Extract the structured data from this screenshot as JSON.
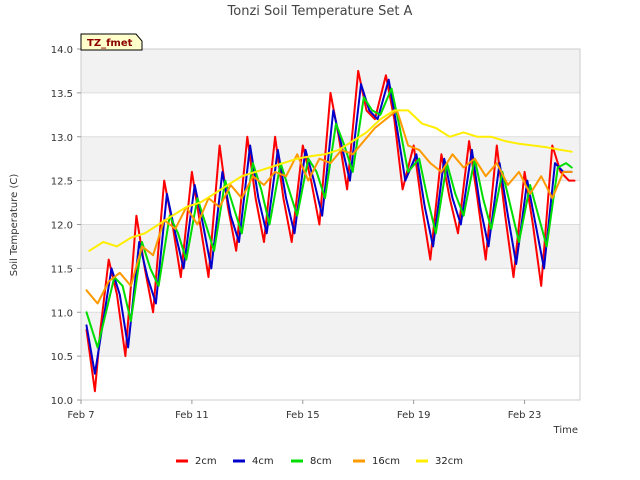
{
  "chart_data": {
    "type": "line",
    "title": "Tonzi Soil Temperature Set A",
    "xlabel": "Time",
    "ylabel": "Soil Temperature (C)",
    "badge": "TZ_fmet",
    "xlim": [
      0,
      18
    ],
    "ylim": [
      10.0,
      14.0
    ],
    "x_ticks": [
      {
        "label": "Feb 7",
        "value": 0
      },
      {
        "label": "Feb 11",
        "value": 4
      },
      {
        "label": "Feb 15",
        "value": 8
      },
      {
        "label": "Feb 19",
        "value": 12
      },
      {
        "label": "Feb 23",
        "value": 16
      }
    ],
    "y_ticks": [
      10.0,
      10.5,
      11.0,
      11.5,
      12.0,
      12.5,
      13.0,
      13.5,
      14.0
    ],
    "x_unit": "days since Feb 7",
    "series": [
      {
        "name": "2cm",
        "color": "#ff0000",
        "x": [
          0.2,
          0.5,
          0.7,
          1.0,
          1.3,
          1.6,
          2.0,
          2.3,
          2.6,
          3.0,
          3.3,
          3.6,
          4.0,
          4.3,
          4.6,
          5.0,
          5.3,
          5.6,
          6.0,
          6.3,
          6.6,
          7.0,
          7.3,
          7.6,
          8.0,
          8.3,
          8.6,
          9.0,
          9.3,
          9.6,
          10.0,
          10.3,
          10.6,
          11.0,
          11.3,
          11.6,
          12.0,
          12.3,
          12.6,
          13.0,
          13.3,
          13.6,
          14.0,
          14.3,
          14.6,
          15.0,
          15.3,
          15.6,
          16.0,
          16.3,
          16.6,
          17.0,
          17.3,
          17.6,
          17.8
        ],
        "y": [
          10.8,
          10.1,
          10.8,
          11.6,
          11.2,
          10.5,
          12.1,
          11.5,
          11.0,
          12.5,
          12.0,
          11.4,
          12.6,
          12.0,
          11.4,
          12.9,
          12.2,
          11.7,
          13.0,
          12.3,
          11.8,
          13.0,
          12.3,
          11.8,
          12.9,
          12.5,
          12.0,
          13.5,
          13.0,
          12.4,
          13.75,
          13.3,
          13.2,
          13.7,
          13.2,
          12.4,
          12.9,
          12.2,
          11.6,
          12.8,
          12.3,
          11.9,
          12.95,
          12.3,
          11.6,
          12.9,
          12.1,
          11.4,
          12.6,
          12.0,
          11.3,
          12.9,
          12.6,
          12.5,
          12.5
        ]
      },
      {
        "name": "4cm",
        "color": "#0000cc",
        "x": [
          0.2,
          0.5,
          0.8,
          1.1,
          1.4,
          1.7,
          2.1,
          2.4,
          2.7,
          3.1,
          3.4,
          3.7,
          4.1,
          4.4,
          4.7,
          5.1,
          5.4,
          5.7,
          6.1,
          6.4,
          6.7,
          7.1,
          7.4,
          7.7,
          8.1,
          8.4,
          8.7,
          9.1,
          9.4,
          9.7,
          10.1,
          10.4,
          10.7,
          11.1,
          11.4,
          11.7,
          12.1,
          12.4,
          12.7,
          13.1,
          13.4,
          13.7,
          14.1,
          14.4,
          14.7,
          15.1,
          15.4,
          15.7,
          16.1,
          16.4,
          16.7,
          17.1,
          17.4,
          17.7
        ],
        "y": [
          10.85,
          10.3,
          10.9,
          11.5,
          11.2,
          10.6,
          11.8,
          11.4,
          11.1,
          12.35,
          11.9,
          11.5,
          12.45,
          12.0,
          11.5,
          12.6,
          12.1,
          11.8,
          12.9,
          12.3,
          11.9,
          12.85,
          12.3,
          11.9,
          12.85,
          12.5,
          12.1,
          13.3,
          12.9,
          12.5,
          13.6,
          13.3,
          13.2,
          13.65,
          13.1,
          12.5,
          12.8,
          12.2,
          11.75,
          12.75,
          12.3,
          12.0,
          12.85,
          12.2,
          11.75,
          12.7,
          12.1,
          11.55,
          12.5,
          12.0,
          11.5,
          12.7,
          12.6,
          12.6
        ]
      },
      {
        "name": "8cm",
        "color": "#00dd00",
        "x": [
          0.2,
          0.6,
          0.9,
          1.2,
          1.5,
          1.8,
          2.2,
          2.5,
          2.8,
          3.2,
          3.5,
          3.8,
          4.2,
          4.5,
          4.8,
          5.2,
          5.5,
          5.8,
          6.2,
          6.5,
          6.8,
          7.2,
          7.5,
          7.8,
          8.2,
          8.5,
          8.8,
          9.2,
          9.5,
          9.8,
          10.2,
          10.5,
          10.8,
          11.2,
          11.5,
          11.8,
          12.2,
          12.5,
          12.8,
          13.2,
          13.5,
          13.8,
          14.2,
          14.5,
          14.8,
          15.2,
          15.5,
          15.8,
          16.2,
          16.5,
          16.8,
          17.2,
          17.5,
          17.7
        ],
        "y": [
          11.0,
          10.6,
          11.0,
          11.4,
          11.3,
          10.9,
          11.8,
          11.5,
          11.3,
          12.1,
          11.9,
          11.6,
          12.3,
          12.0,
          11.7,
          12.5,
          12.2,
          11.9,
          12.7,
          12.4,
          12.0,
          12.7,
          12.4,
          12.1,
          12.75,
          12.6,
          12.3,
          13.15,
          12.9,
          12.6,
          13.45,
          13.3,
          13.25,
          13.55,
          13.1,
          12.6,
          12.75,
          12.3,
          11.9,
          12.7,
          12.35,
          12.1,
          12.75,
          12.3,
          11.95,
          12.6,
          12.2,
          11.8,
          12.45,
          12.1,
          11.75,
          12.65,
          12.7,
          12.65
        ]
      },
      {
        "name": "16cm",
        "color": "#ff9900",
        "x": [
          0.2,
          0.6,
          1.0,
          1.4,
          1.8,
          2.2,
          2.6,
          3.0,
          3.4,
          3.8,
          4.2,
          4.6,
          5.0,
          5.4,
          5.8,
          6.2,
          6.6,
          7.0,
          7.4,
          7.8,
          8.2,
          8.6,
          9.0,
          9.4,
          9.8,
          10.2,
          10.6,
          11.0,
          11.4,
          11.8,
          12.2,
          12.6,
          13.0,
          13.4,
          13.8,
          14.2,
          14.6,
          15.0,
          15.4,
          15.8,
          16.2,
          16.6,
          17.0,
          17.4,
          17.7
        ],
        "y": [
          11.25,
          11.1,
          11.35,
          11.45,
          11.3,
          11.75,
          11.65,
          12.05,
          11.95,
          12.2,
          12.0,
          12.3,
          12.2,
          12.45,
          12.3,
          12.55,
          12.45,
          12.6,
          12.55,
          12.8,
          12.5,
          12.75,
          12.7,
          12.85,
          12.8,
          12.95,
          13.1,
          13.2,
          13.3,
          12.9,
          12.85,
          12.7,
          12.6,
          12.8,
          12.65,
          12.75,
          12.55,
          12.7,
          12.45,
          12.6,
          12.35,
          12.55,
          12.3,
          12.6,
          12.6
        ]
      },
      {
        "name": "32cm",
        "color": "#ffee00",
        "x": [
          0.3,
          0.8,
          1.3,
          1.8,
          2.3,
          2.8,
          3.3,
          3.8,
          4.3,
          4.8,
          5.3,
          5.8,
          6.3,
          6.8,
          7.3,
          7.8,
          8.3,
          8.8,
          9.3,
          9.8,
          10.3,
          10.8,
          11.3,
          11.8,
          12.3,
          12.8,
          13.3,
          13.8,
          14.3,
          14.8,
          15.3,
          15.8,
          16.3,
          16.8,
          17.3,
          17.7
        ],
        "y": [
          11.7,
          11.8,
          11.75,
          11.85,
          11.9,
          12.0,
          12.1,
          12.2,
          12.25,
          12.35,
          12.45,
          12.55,
          12.6,
          12.65,
          12.7,
          12.75,
          12.78,
          12.8,
          12.85,
          12.95,
          13.05,
          13.2,
          13.3,
          13.3,
          13.15,
          13.1,
          13.0,
          13.05,
          13.0,
          13.0,
          12.95,
          12.92,
          12.9,
          12.88,
          12.85,
          12.83
        ]
      }
    ]
  }
}
